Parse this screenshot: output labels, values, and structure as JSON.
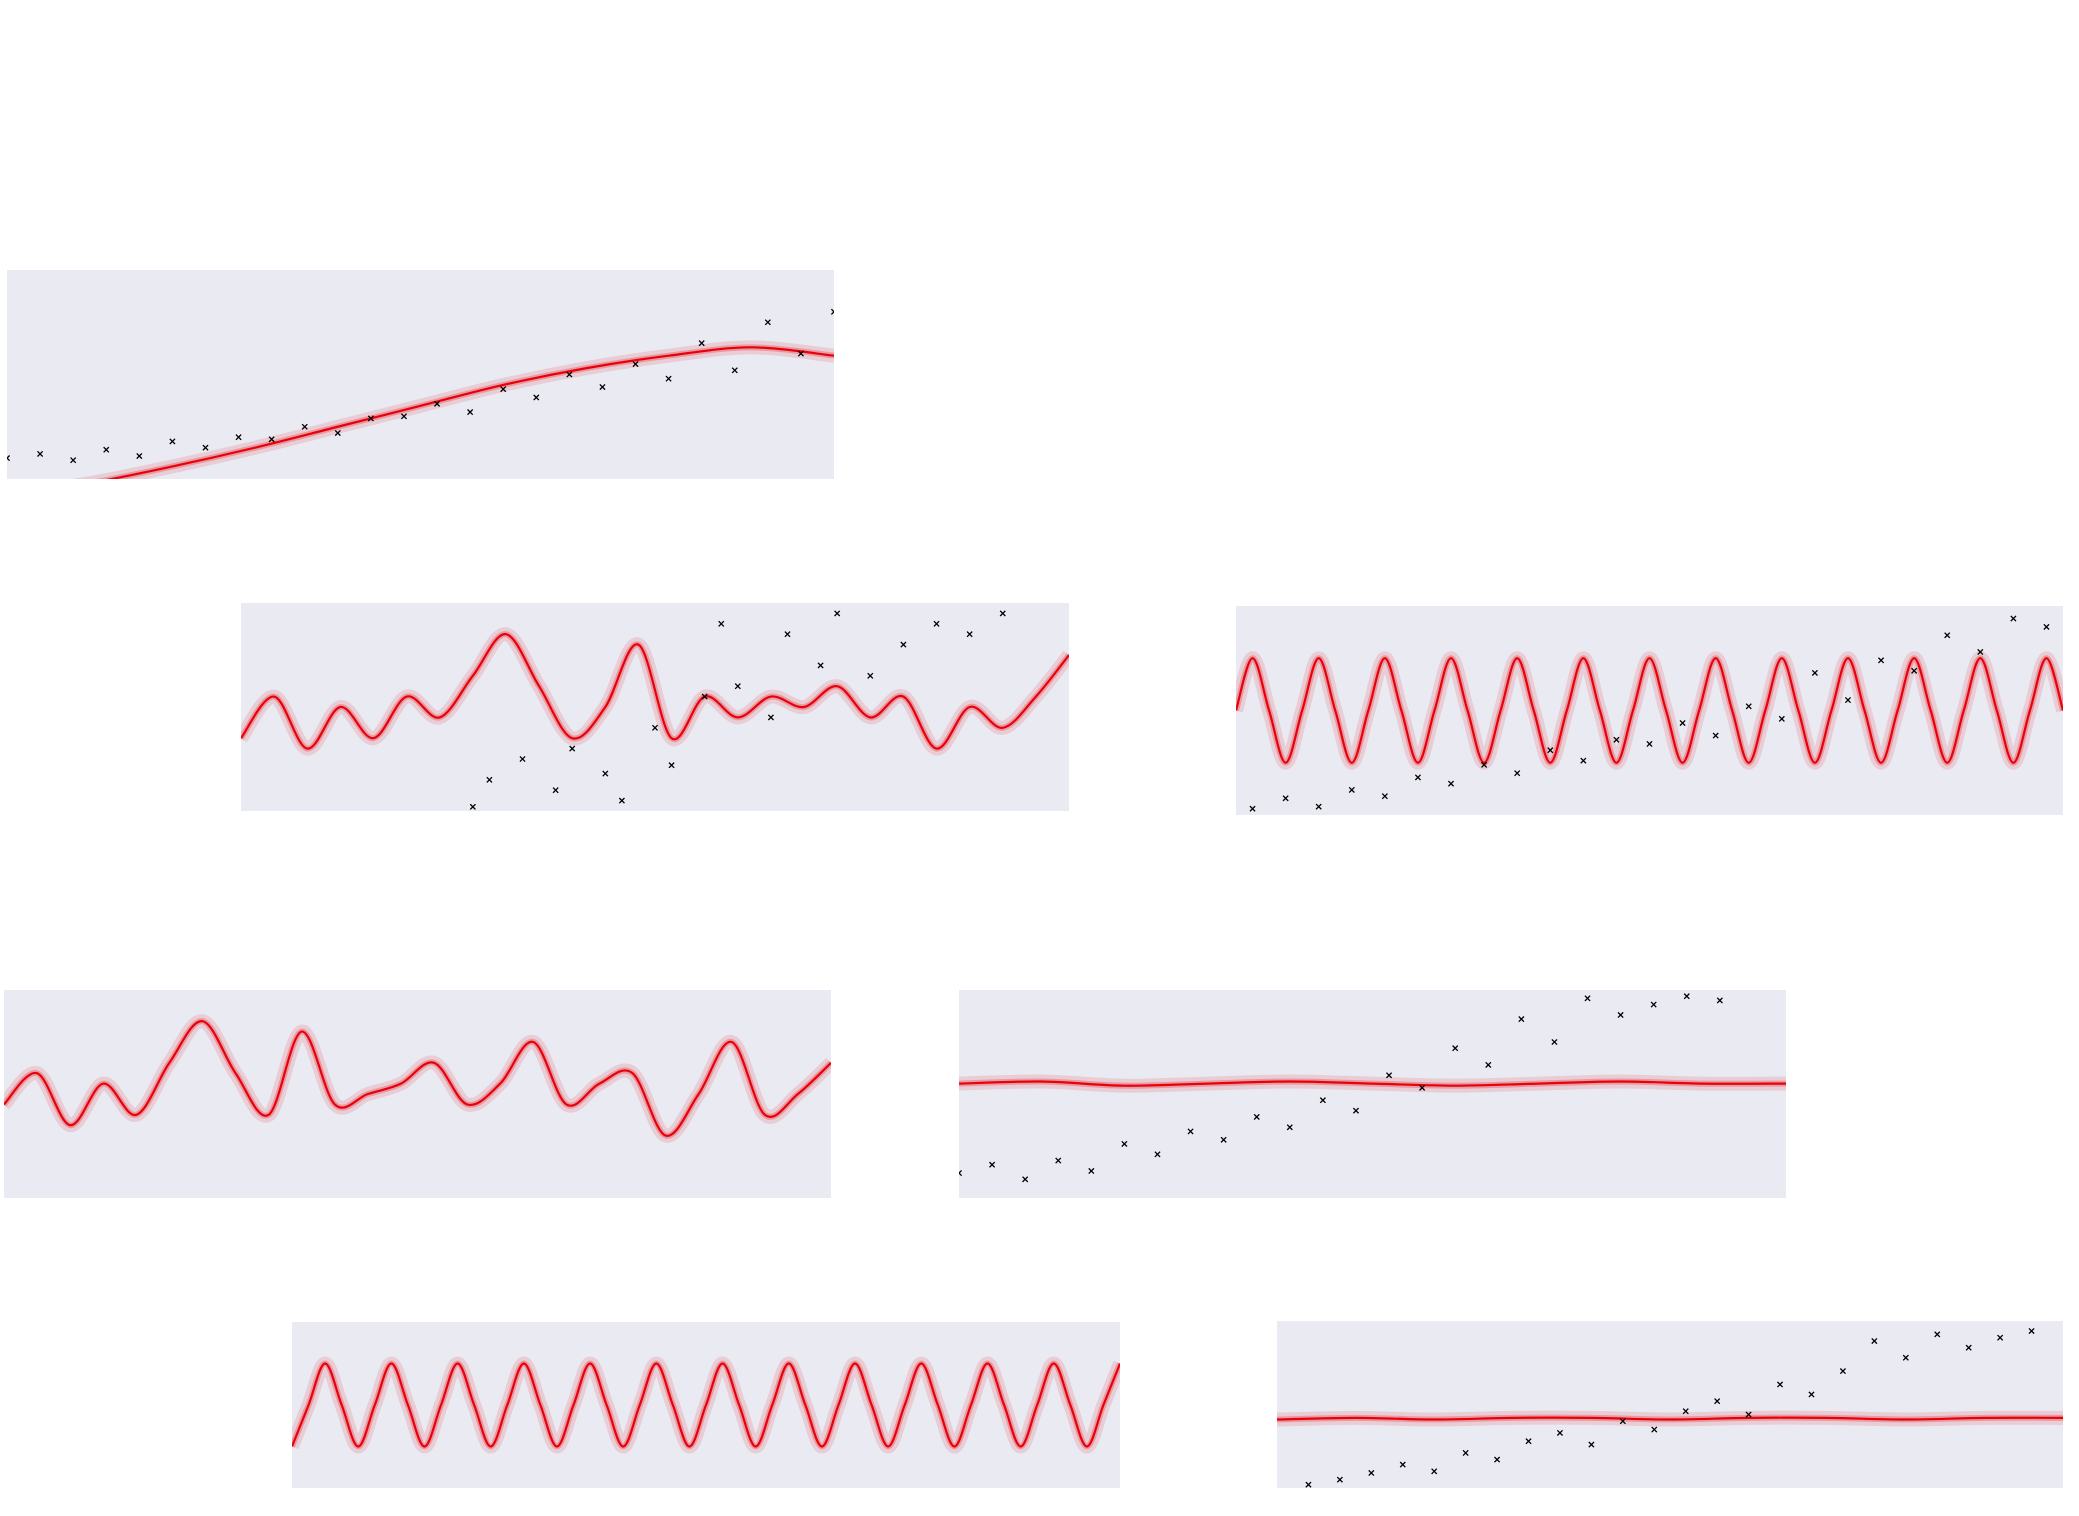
{
  "chart_data": [
    {
      "type": "line",
      "xlim": [
        0,
        100
      ],
      "ylim": [
        0,
        10
      ],
      "x": [
        0,
        10,
        20,
        30,
        40,
        50,
        60,
        70,
        80,
        90,
        100
      ],
      "series": [
        {
          "color": "#e8000b",
          "values": [
            -0.8,
            -0.2,
            0.6,
            1.5,
            2.5,
            3.5,
            4.5,
            5.3,
            5.9,
            6.3,
            5.9
          ]
        }
      ],
      "scatter": {
        "color": "#000000",
        "x": [
          0,
          4,
          8,
          12,
          16,
          20,
          24,
          28,
          32,
          36,
          40,
          44,
          48,
          52,
          56,
          60,
          64,
          68,
          72,
          76,
          80,
          84,
          88,
          92,
          96,
          100
        ],
        "values": [
          1.0,
          1.2,
          0.9,
          1.4,
          1.1,
          1.8,
          1.5,
          2.0,
          1.9,
          2.5,
          2.2,
          2.9,
          3.0,
          3.6,
          3.2,
          4.3,
          3.9,
          5.0,
          4.4,
          5.5,
          4.8,
          6.5,
          5.2,
          7.5,
          6.0,
          8.0
        ]
      }
    },
    {
      "type": "line",
      "xlim": [
        0,
        100
      ],
      "ylim": [
        0,
        10
      ],
      "x": [
        0,
        4,
        8,
        12,
        16,
        20,
        24,
        28,
        32,
        36,
        40,
        44,
        48,
        52,
        56,
        60,
        64,
        68,
        72,
        76,
        80,
        84,
        88,
        92,
        96,
        100
      ],
      "series": [
        {
          "color": "#e8000b",
          "values": [
            3.5,
            5.5,
            3,
            5,
            3.5,
            5.5,
            4.5,
            6.5,
            8.5,
            6,
            3.5,
            5,
            8,
            3.5,
            5.5,
            4.5,
            5.5,
            5,
            6,
            4.5,
            5.5,
            3,
            5,
            4,
            5.5,
            7.5
          ]
        }
      ],
      "scatter": {
        "color": "#000000",
        "x": [
          28,
          30,
          34,
          38,
          40,
          44,
          46,
          50,
          52,
          56,
          58,
          60,
          64,
          66,
          70,
          72,
          76,
          80,
          84,
          88,
          92
        ],
        "values": [
          0.2,
          1.5,
          2.5,
          1,
          3,
          1.8,
          0.5,
          4,
          2.2,
          5.5,
          9,
          6,
          4.5,
          8.5,
          7,
          9.5,
          6.5,
          8,
          9,
          8.5,
          9.5
        ]
      }
    },
    {
      "type": "line",
      "xlim": [
        0,
        100
      ],
      "ylim": [
        0,
        10
      ],
      "x": [
        0,
        2,
        4,
        6,
        8,
        10,
        12,
        14,
        16,
        18,
        20,
        22,
        24,
        26,
        28,
        30,
        32,
        34,
        36,
        38,
        40,
        42,
        44,
        46,
        48,
        50,
        52,
        54,
        56,
        58,
        60,
        62,
        64,
        66,
        68,
        70,
        72,
        74,
        76,
        78,
        80,
        82,
        84,
        86,
        88,
        90,
        92,
        94,
        96,
        98,
        100
      ],
      "series": [
        {
          "color": "#e8000b",
          "values": [
            5,
            7.5,
            5,
            2.5,
            5,
            7.5,
            5,
            2.5,
            5,
            7.5,
            5,
            2.5,
            5,
            7.5,
            5,
            2.5,
            5,
            7.5,
            5,
            2.5,
            5,
            7.5,
            5,
            2.5,
            5,
            7.5,
            5,
            2.5,
            5,
            7.5,
            5,
            2.5,
            5,
            7.5,
            5,
            2.5,
            5,
            7.5,
            5,
            2.5,
            5,
            7.5,
            5,
            2.5,
            5,
            7.5,
            5,
            2.5,
            5,
            7.5,
            5
          ]
        }
      ],
      "scatter": {
        "color": "#000000",
        "x": [
          2,
          6,
          10,
          14,
          18,
          22,
          26,
          30,
          34,
          38,
          42,
          46,
          50,
          54,
          58,
          62,
          66,
          70,
          74,
          78,
          82,
          86,
          90,
          94,
          98
        ],
        "values": [
          0.3,
          0.8,
          0.4,
          1.2,
          0.9,
          1.8,
          1.5,
          2.4,
          2.0,
          3.1,
          2.6,
          3.6,
          3.4,
          4.4,
          3.8,
          5.2,
          4.6,
          6.8,
          5.5,
          7.4,
          6.9,
          8.6,
          7.8,
          9.4,
          9.0
        ]
      }
    },
    {
      "type": "line",
      "xlim": [
        0,
        100
      ],
      "ylim": [
        0,
        10
      ],
      "x": [
        0,
        4,
        8,
        12,
        16,
        20,
        24,
        28,
        32,
        36,
        40,
        44,
        48,
        52,
        56,
        60,
        64,
        68,
        72,
        76,
        80,
        84,
        88,
        92,
        96,
        100
      ],
      "series": [
        {
          "color": "#e8000b",
          "values": [
            4.5,
            6,
            3.5,
            5.5,
            4,
            6.5,
            8.5,
            6,
            4,
            8,
            4.5,
            5,
            5.5,
            6.5,
            4.5,
            5.5,
            7.5,
            4.5,
            5.5,
            6,
            3,
            5,
            7.5,
            4,
            5,
            6.5
          ]
        }
      ]
    },
    {
      "type": "line",
      "xlim": [
        0,
        100
      ],
      "ylim": [
        0,
        10
      ],
      "x": [
        0,
        10,
        20,
        30,
        40,
        50,
        60,
        70,
        80,
        90,
        100
      ],
      "series": [
        {
          "color": "#e8000b",
          "values": [
            5.5,
            5.6,
            5.4,
            5.5,
            5.6,
            5.5,
            5.4,
            5.5,
            5.6,
            5.5,
            5.5
          ]
        }
      ],
      "scatter": {
        "color": "#000000",
        "x": [
          0,
          4,
          8,
          12,
          16,
          20,
          24,
          28,
          32,
          36,
          40,
          44,
          48,
          52,
          56,
          60,
          64,
          68,
          72,
          76,
          80,
          84,
          88,
          92
        ],
        "values": [
          1.2,
          1.6,
          0.9,
          1.8,
          1.3,
          2.6,
          2.1,
          3.2,
          2.8,
          3.9,
          3.4,
          4.7,
          4.2,
          5.9,
          5.3,
          7.2,
          6.4,
          8.6,
          7.5,
          9.6,
          8.8,
          9.3,
          9.7,
          9.5
        ]
      }
    },
    {
      "type": "line",
      "xlim": [
        0,
        100
      ],
      "ylim": [
        0,
        10
      ],
      "x": [
        0,
        2,
        4,
        6,
        8,
        10,
        12,
        14,
        16,
        18,
        20,
        22,
        24,
        26,
        28,
        30,
        32,
        34,
        36,
        38,
        40,
        42,
        44,
        46,
        48,
        50,
        52,
        54,
        56,
        58,
        60,
        62,
        64,
        66,
        68,
        70,
        72,
        74,
        76,
        78,
        80,
        82,
        84,
        86,
        88,
        90,
        92,
        94,
        96,
        98,
        100
      ],
      "series": [
        {
          "color": "#e8000b",
          "values": [
            2.5,
            5,
            7.5,
            5,
            2.5,
            5,
            7.5,
            5,
            2.5,
            5,
            7.5,
            5,
            2.5,
            5,
            7.5,
            5,
            2.5,
            5,
            7.5,
            5,
            2.5,
            5,
            7.5,
            5,
            2.5,
            5,
            7.5,
            5,
            2.5,
            5,
            7.5,
            5,
            2.5,
            5,
            7.5,
            5,
            2.5,
            5,
            7.5,
            5,
            2.5,
            5,
            7.5,
            5,
            2.5,
            5,
            7.5,
            5,
            2.5,
            5,
            7.5
          ]
        }
      ]
    },
    {
      "type": "line",
      "xlim": [
        0,
        100
      ],
      "ylim": [
        0,
        10
      ],
      "x": [
        0,
        10,
        20,
        30,
        40,
        50,
        60,
        70,
        80,
        90,
        100
      ],
      "series": [
        {
          "color": "#e8000b",
          "values": [
            4.1,
            4.2,
            4.1,
            4.2,
            4.2,
            4.1,
            4.2,
            4.2,
            4.1,
            4.2,
            4.2
          ]
        }
      ],
      "scatter": {
        "color": "#000000",
        "x": [
          4,
          8,
          12,
          16,
          20,
          24,
          28,
          32,
          36,
          40,
          44,
          48,
          52,
          56,
          60,
          64,
          68,
          72,
          76,
          80,
          84,
          88,
          92,
          96
        ],
        "values": [
          0.2,
          0.5,
          0.9,
          1.4,
          1.0,
          2.1,
          1.7,
          2.8,
          3.3,
          2.6,
          4.0,
          3.5,
          4.6,
          5.2,
          4.4,
          6.2,
          5.6,
          7.0,
          8.8,
          7.8,
          9.2,
          8.4,
          9.0,
          9.4
        ]
      }
    }
  ]
}
